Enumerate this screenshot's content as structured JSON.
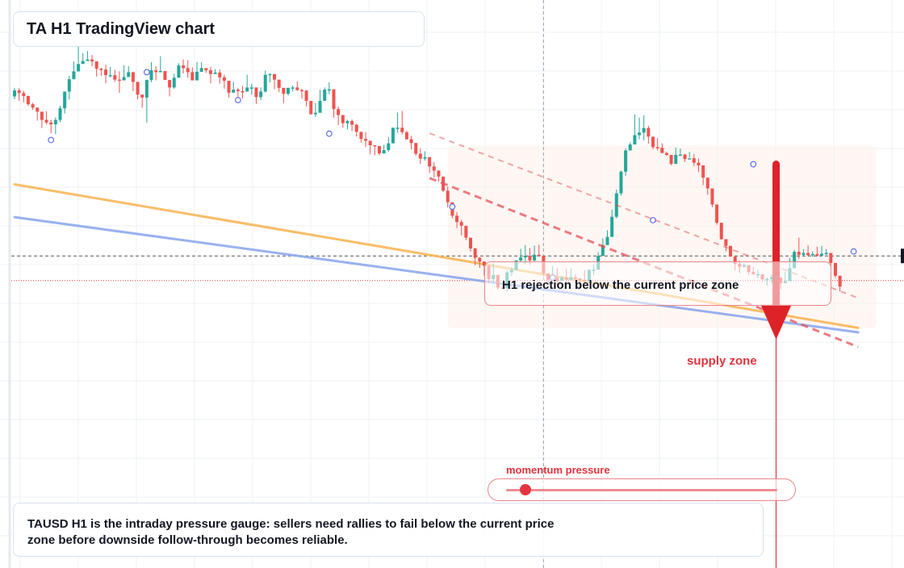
{
  "title": "TA H1 TradingView chart",
  "description": "TAUSD H1 is the intraday pressure gauge: sellers need rallies to fail below the current price zone before downside follow-through becomes reliable.",
  "zone_label": "H1 rejection below the current price zone",
  "supply_label": "supply zone",
  "momentum": {
    "label": "momentum pressure",
    "level": 0.07
  },
  "colors": {
    "up": "#26a69a",
    "down": "#ef5350",
    "ema_fast": "#f9b24f",
    "ema_slow": "#8ea9ee",
    "trendline": "#e5535a",
    "arrow": "#dd2228",
    "zone_fill": "#fdf1ea"
  },
  "chart_data": {
    "type": "candlestick",
    "symbol": "TAUSD",
    "timeframe": "H1",
    "y_range": [
      0,
      100
    ],
    "x_range": [
      0,
      185
    ],
    "grid": true,
    "axis_labels": "none visible",
    "candles": [
      [
        80.2,
        81.8,
        82.5,
        79.4
      ],
      [
        81.8,
        81.1,
        82.4,
        79.0
      ],
      [
        81.1,
        80.3,
        81.7,
        78.6
      ],
      [
        80.3,
        78.1,
        80.4,
        77.7
      ],
      [
        78.1,
        77.2,
        78.5,
        76.6
      ],
      [
        77.2,
        76.1,
        76.9,
        73.7
      ],
      [
        76.1,
        73.9,
        75.8,
        71.7
      ],
      [
        73.9,
        73.2,
        76.2,
        72.7
      ],
      [
        73.2,
        72.7,
        73.9,
        70.3
      ],
      [
        72.7,
        73.9,
        74.6,
        70.1
      ],
      [
        73.9,
        77.0,
        77.7,
        73.3
      ],
      [
        77.0,
        81.5,
        81.2,
        75.6
      ],
      [
        81.5,
        84.8,
        85.7,
        79.4
      ],
      [
        84.8,
        86.9,
        89.6,
        86.5
      ],
      [
        86.9,
        88.9,
        93.9,
        89.0
      ],
      [
        88.9,
        89.7,
        91.8,
        89.7
      ],
      [
        89.7,
        90.1,
        92.4,
        90.0
      ],
      [
        90.1,
        89.6,
        91.3,
        88.3
      ],
      [
        89.6,
        87.6,
        88.1,
        85.5
      ],
      [
        87.6,
        87.4,
        87.9,
        85.7
      ],
      [
        87.4,
        85.9,
        88.7,
        83.7
      ],
      [
        85.9,
        85.9,
        88.1,
        85.3
      ],
      [
        85.9,
        84.7,
        87.3,
        84.1
      ],
      [
        84.7,
        84.5,
        86.9,
        81.2
      ],
      [
        84.5,
        85.4,
        88.5,
        84.8
      ],
      [
        85.4,
        86.7,
        88.3,
        86.0
      ],
      [
        86.7,
        84.1,
        85.4,
        81.6
      ],
      [
        84.1,
        80.7,
        82.2,
        79.4
      ],
      [
        80.7,
        79.9,
        80.5,
        77.2
      ],
      [
        79.9,
        84.6,
        84.7,
        73.1
      ],
      [
        84.6,
        87.2,
        89.4,
        84.0
      ],
      [
        87.2,
        86.7,
        88.3,
        84.5
      ],
      [
        86.7,
        87.0,
        91.0,
        86.8
      ],
      [
        87.0,
        84.6,
        86.8,
        84.6
      ],
      [
        84.6,
        82.6,
        84.3,
        80.2
      ],
      [
        82.6,
        85.2,
        86.3,
        82.2
      ],
      [
        85.2,
        88.5,
        89.1,
        87.5
      ],
      [
        88.5,
        87.8,
        90.1,
        86.3
      ],
      [
        87.8,
        86.7,
        89.9,
        85.2
      ],
      [
        86.7,
        84.5,
        88.0,
        84.6
      ],
      [
        84.5,
        86.8,
        89.4,
        84.7
      ],
      [
        86.8,
        87.8,
        89.4,
        86.9
      ],
      [
        87.8,
        87.2,
        87.4,
        86.5
      ],
      [
        87.2,
        86.2,
        88.1,
        83.7
      ],
      [
        86.2,
        86.6,
        87.5,
        86.6
      ],
      [
        86.6,
        85.3,
        87.4,
        83.6
      ],
      [
        85.3,
        84.4,
        86.0,
        82.3
      ],
      [
        84.4,
        81.2,
        82.6,
        79.9
      ],
      [
        81.2,
        82.0,
        84.1,
        81.7
      ],
      [
        82.0,
        81.6,
        82.4,
        79.0
      ],
      [
        81.6,
        81.5,
        83.0,
        79.6
      ],
      [
        81.5,
        82.6,
        86.0,
        82.6
      ],
      [
        82.6,
        82.6,
        83.6,
        80.7
      ],
      [
        82.6,
        80.0,
        80.9,
        78.2
      ],
      [
        80.0,
        81.5,
        82.6,
        79.2
      ],
      [
        81.5,
        86.0,
        87.1,
        81.3
      ],
      [
        86.0,
        86.2,
        86.3,
        84.0
      ],
      [
        86.2,
        84.7,
        85.8,
        82.1
      ],
      [
        84.7,
        82.5,
        83.2,
        81.3
      ],
      [
        82.5,
        80.9,
        82.3,
        78.4
      ],
      [
        80.9,
        82.5,
        82.5,
        80.4
      ],
      [
        82.5,
        82.6,
        83.1,
        81.5
      ],
      [
        82.6,
        81.9,
        84.2,
        81.7
      ],
      [
        81.9,
        81.8,
        82.2,
        79.6
      ],
      [
        81.8,
        79.0,
        79.8,
        77.5
      ],
      [
        79.0,
        75.4,
        77.0,
        75.4
      ],
      [
        75.4,
        75.8,
        78.4,
        74.6
      ],
      [
        75.8,
        79.0,
        82.0,
        76.8
      ],
      [
        79.0,
        82.0,
        82.6,
        80.3
      ],
      [
        82.0,
        82.1,
        84.0,
        80.8
      ],
      [
        82.1,
        76.8,
        81.0,
        74.5
      ],
      [
        76.8,
        75.2,
        77.5,
        72.5
      ],
      [
        75.2,
        73.0,
        74.2,
        71.8
      ],
      [
        73.0,
        73.6,
        73.9,
        71.3
      ],
      [
        73.6,
        72.6,
        74.0,
        70.9
      ],
      [
        72.6,
        70.7,
        72.9,
        69.4
      ],
      [
        70.7,
        68.8,
        70.6,
        67.8
      ],
      [
        68.8,
        68.3,
        70.6,
        66.6
      ],
      [
        68.3,
        67.1,
        68.0,
        64.7
      ],
      [
        67.1,
        66.9,
        67.1,
        64.4
      ],
      [
        66.9,
        64.9,
        66.8,
        64.4
      ],
      [
        64.9,
        65.8,
        67.2,
        64.9
      ],
      [
        65.8,
        67.6,
        69.3,
        65.3
      ],
      [
        67.6,
        71.8,
        71.6,
        68.5
      ],
      [
        71.8,
        71.8,
        75.9,
        70.4
      ],
      [
        71.8,
        70.6,
        76.3,
        70.0
      ],
      [
        70.6,
        68.7,
        71.0,
        68.6
      ],
      [
        68.7,
        67.7,
        69.6,
        66.0
      ],
      [
        67.7,
        64.8,
        66.9,
        64.3
      ],
      [
        64.8,
        63.5,
        66.2,
        62.1
      ],
      [
        63.5,
        63.9,
        65.5,
        63.0
      ],
      [
        63.9,
        61.4,
        62.3,
        59.6
      ],
      [
        61.4,
        60.3,
        62.5,
        58.5
      ],
      [
        60.3,
        58.7,
        60.4,
        57.3
      ],
      [
        58.7,
        54.9,
        57.5,
        54.5
      ],
      [
        54.9,
        51.8,
        56.1,
        50.4
      ],
      [
        51.8,
        48.2,
        50.7,
        47.5
      ],
      [
        48.2,
        46.5,
        49.2,
        44.9
      ],
      [
        46.5,
        45.5,
        47.1,
        42.9
      ],
      [
        45.5,
        42.3,
        44.5,
        41.6
      ],
      [
        42.3,
        39.4,
        41.2,
        38.5
      ],
      [
        39.4,
        36.9,
        39.6,
        34.9
      ],
      [
        36.9,
        35.9,
        37.1,
        34.2
      ],
      [
        35.9,
        34.8,
        35.8,
        32.1
      ],
      [
        34.8,
        31.2,
        33.8,
        30.3
      ],
      [
        31.2,
        32.3,
        35.4,
        30.3
      ],
      [
        32.3,
        28.9,
        32.1,
        28.3
      ],
      [
        28.9,
        28.8,
        29.2,
        28.5
      ],
      [
        28.8,
        33.0,
        33.5,
        27.9
      ],
      [
        33.0,
        33.6,
        34.3,
        32.0
      ],
      [
        33.6,
        36.2,
        36.1,
        34.6
      ],
      [
        36.2,
        37.0,
        39.3,
        35.6
      ],
      [
        37.0,
        37.4,
        40.3,
        35.2
      ],
      [
        37.4,
        36.2,
        39.5,
        35.0
      ],
      [
        36.2,
        37.7,
        40.2,
        35.7
      ],
      [
        37.7,
        37.4,
        40.4,
        37.4
      ],
      [
        37.4,
        32.7,
        37.5,
        32.0
      ],
      [
        32.7,
        31.0,
        31.6,
        30.3
      ],
      [
        31.0,
        31.5,
        34.7,
        31.0
      ],
      [
        31.5,
        30.8,
        34.1,
        29.6
      ],
      [
        30.8,
        31.6,
        32.1,
        31.1
      ],
      [
        31.6,
        31.0,
        33.9,
        29.2
      ],
      [
        31.0,
        31.7,
        34.1,
        31.7
      ],
      [
        31.7,
        31.4,
        32.5,
        30.1
      ],
      [
        31.4,
        31.0,
        31.2,
        29.8
      ],
      [
        31.0,
        30.6,
        33.6,
        29.4
      ],
      [
        30.6,
        33.7,
        33.5,
        30.2
      ],
      [
        33.7,
        33.7,
        35.2,
        32.3
      ],
      [
        33.7,
        37.4,
        38.4,
        34.4
      ],
      [
        37.4,
        40.3,
        42.1,
        39.5
      ],
      [
        40.3,
        42.5,
        44.3,
        40.4
      ],
      [
        42.5,
        47.9,
        49.8,
        44.6
      ],
      [
        47.9,
        54.2,
        55.2,
        47.5
      ],
      [
        54.2,
        60.0,
        60.3,
        53.6
      ],
      [
        60.0,
        65.7,
        66.2,
        58.9
      ],
      [
        65.7,
        67.3,
        67.9,
        65.8
      ],
      [
        67.3,
        69.8,
        75.4,
        68.4
      ],
      [
        69.8,
        70.5,
        74.5,
        68.7
      ],
      [
        70.5,
        71.7,
        75.1,
        68.4
      ],
      [
        71.7,
        69.4,
        72.3,
        67.5
      ],
      [
        69.4,
        66.6,
        68.4,
        66.0
      ],
      [
        66.6,
        66.4,
        69.0,
        65.7
      ],
      [
        66.4,
        65.0,
        67.6,
        65.3
      ],
      [
        65.0,
        64.5,
        65.4,
        64.2
      ],
      [
        64.5,
        62.1,
        62.8,
        61.7
      ],
      [
        62.1,
        64.5,
        66.5,
        62.4
      ],
      [
        64.5,
        64.6,
        66.2,
        64.5
      ],
      [
        64.6,
        63.4,
        64.8,
        62.6
      ],
      [
        63.4,
        63.6,
        65.3,
        63.8
      ],
      [
        63.6,
        62.4,
        64.7,
        61.5
      ],
      [
        62.4,
        61.7,
        63.5,
        59.9
      ],
      [
        61.7,
        58.4,
        60.3,
        56.4
      ],
      [
        58.4,
        55.5,
        56.7,
        53.8
      ],
      [
        55.5,
        51.2,
        53.0,
        50.5
      ],
      [
        51.2,
        46.3,
        47.9,
        45.8
      ],
      [
        46.3,
        41.9,
        43.2,
        41.7
      ],
      [
        41.9,
        40.1,
        40.5,
        38.6
      ],
      [
        40.1,
        37.2,
        38.5,
        37.3
      ],
      [
        37.2,
        35.3,
        37.4,
        33.5
      ],
      [
        35.3,
        34.5,
        36.1,
        32.8
      ],
      [
        34.5,
        34.9,
        35.4,
        34.3
      ],
      [
        34.9,
        33.1,
        34.7,
        32.3
      ],
      [
        33.1,
        32.5,
        34.5,
        32.3
      ],
      [
        32.5,
        32.5,
        33.7,
        31.4
      ],
      [
        32.5,
        31.1,
        32.2,
        30.4
      ],
      [
        31.1,
        31.2,
        31.6,
        29.4
      ],
      [
        31.2,
        31.7,
        32.4,
        30.0
      ],
      [
        31.7,
        31.6,
        32.9,
        30.6
      ],
      [
        31.6,
        30.1,
        31.3,
        28.5
      ],
      [
        30.1,
        30.6,
        33.2,
        30.6
      ],
      [
        30.6,
        34.1,
        36.9,
        34.1
      ],
      [
        34.1,
        38.5,
        39.0,
        36.2
      ],
      [
        38.5,
        37.7,
        42.3,
        36.6
      ],
      [
        37.7,
        38.2,
        39.2,
        37.3
      ],
      [
        38.2,
        37.6,
        40.2,
        37.3
      ],
      [
        37.6,
        37.9,
        38.6,
        37.1
      ],
      [
        37.9,
        37.5,
        39.9,
        37.2
      ],
      [
        37.5,
        38.0,
        40.1,
        37.3
      ],
      [
        38.0,
        38.2,
        39.2,
        37.6
      ],
      [
        38.2,
        35.5,
        36.7,
        34.3
      ],
      [
        35.5,
        32.1,
        34.5,
        31.5
      ],
      [
        32.1,
        29.2,
        30.3,
        27.9
      ]
    ],
    "ema_fast": [
      [
        0,
        56.6
      ],
      [
        185,
        18.1
      ]
    ],
    "ema_slow": [
      [
        0,
        47.8
      ],
      [
        185,
        16.9
      ]
    ],
    "trend_upper": [
      [
        91,
        70.3
      ],
      [
        185,
        26.1
      ]
    ],
    "trend_lower": [
      [
        91,
        58.3
      ],
      [
        185,
        13.0
      ]
    ],
    "current_price": 37.4,
    "dotted_level": 30.8,
    "arrow": {
      "x": 167,
      "from": 62.0,
      "to": 15.0
    },
    "vertical_marker_x": 167,
    "crosshair_x": 116,
    "zone": {
      "x": [
        95,
        189
      ],
      "y": [
        18,
        67
      ]
    },
    "markers": [
      [
        8,
        68.5
      ],
      [
        29,
        86.7
      ],
      [
        49,
        79.2
      ],
      [
        69,
        70.2
      ],
      [
        96,
        50.6
      ],
      [
        118,
        31.6
      ],
      [
        140,
        47.0
      ],
      [
        162,
        62.0
      ],
      [
        184,
        38.6
      ]
    ]
  }
}
